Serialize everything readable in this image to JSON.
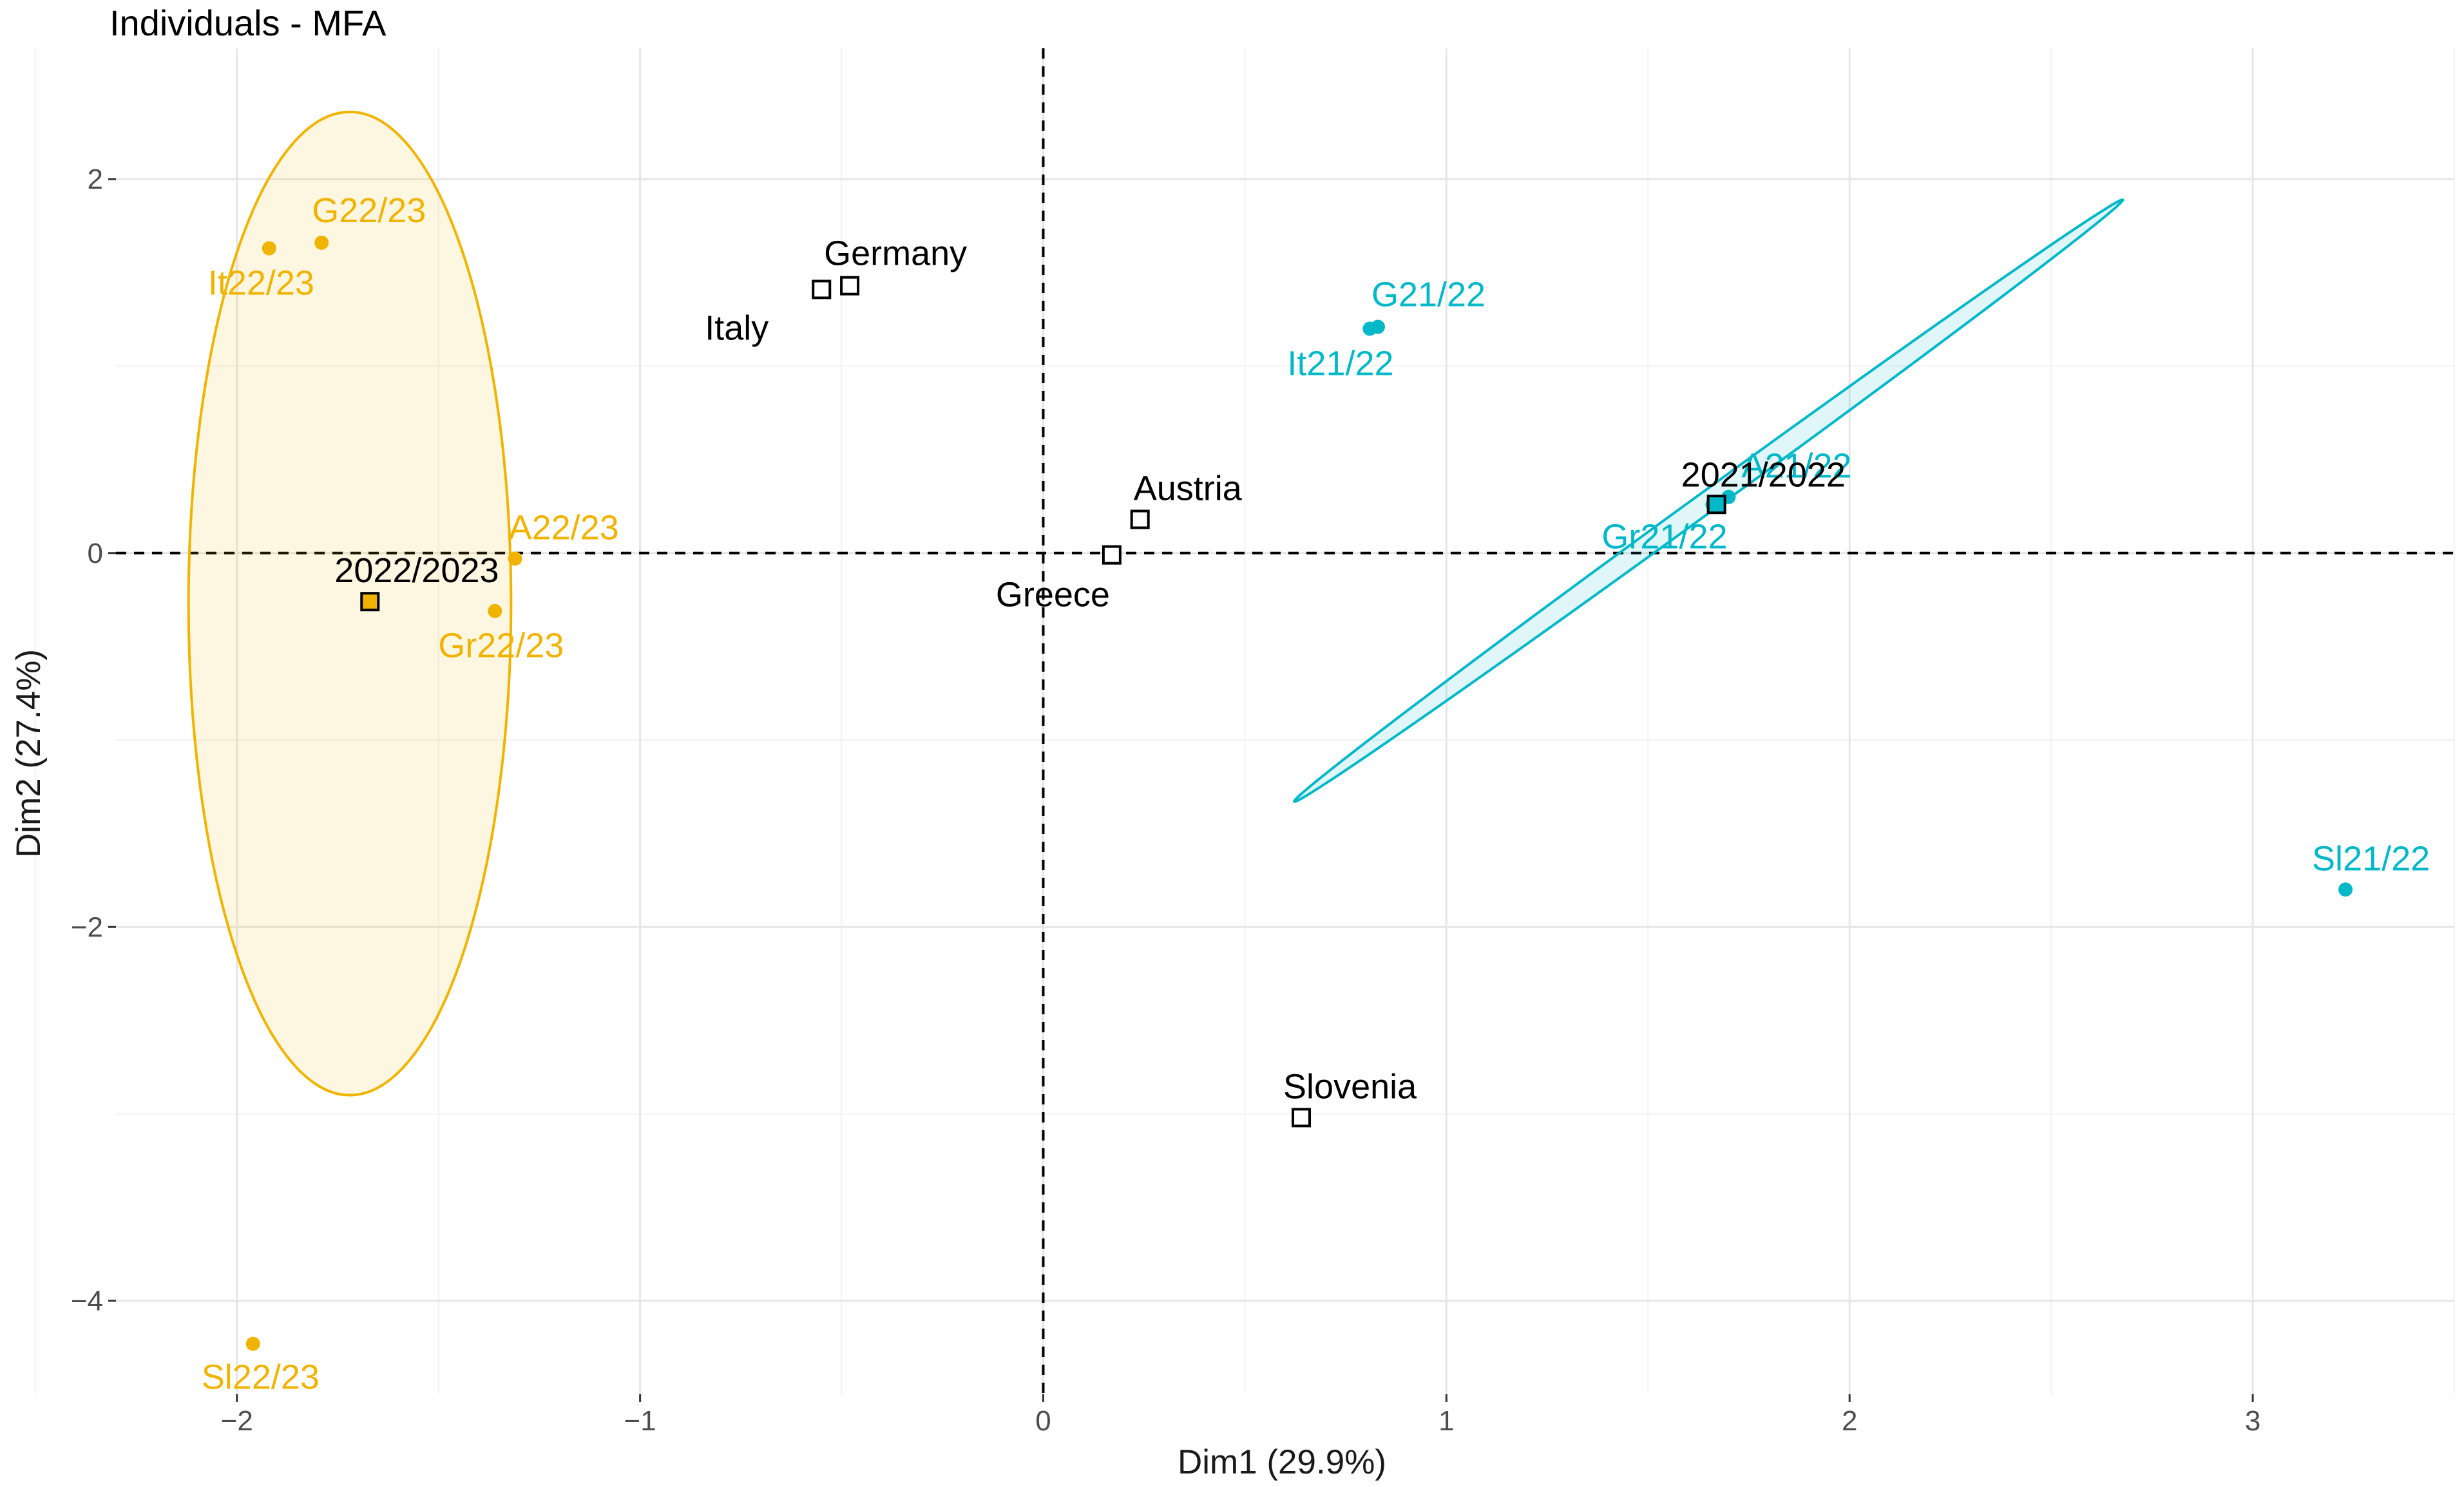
{
  "chart_data": {
    "type": "scatter",
    "title": "Individuals - MFA",
    "xlabel": "Dim1 (29.9%)",
    "ylabel": "Dim2 (27.4%)",
    "xlim": [
      -2.3,
      3.5
    ],
    "ylim": [
      -4.5,
      2.7
    ],
    "x_ticks": [
      -2,
      -1,
      0,
      1,
      2,
      3
    ],
    "y_ticks": [
      -4,
      -2,
      0,
      2
    ],
    "x_tick_labels": [
      "−2",
      "−1",
      "0",
      "1",
      "2",
      "3"
    ],
    "y_tick_labels": [
      "−4",
      "−2",
      "0",
      "2"
    ],
    "grid": true,
    "reference_lines": {
      "x": 0,
      "y": 0
    },
    "groups": [
      {
        "name": "2022/2023",
        "color": "#F0B400",
        "ellipse": {
          "center": [
            -1.72,
            -0.27
          ],
          "semi_axis_x": 0.4,
          "semi_axis_y": 2.63,
          "rotation_deg": 0
        },
        "centroid": {
          "label": "2022/2023",
          "x": -1.67,
          "y": -0.26
        },
        "points": [
          {
            "label": "G22/23",
            "x": -1.79,
            "y": 1.66
          },
          {
            "label": "It22/23",
            "x": -1.92,
            "y": 1.63
          },
          {
            "label": "A22/23",
            "x": -1.31,
            "y": -0.03
          },
          {
            "label": "Gr22/23",
            "x": -1.36,
            "y": -0.31
          },
          {
            "label": "Sl22/23",
            "x": -1.96,
            "y": -4.23
          }
        ]
      },
      {
        "name": "2021/2022",
        "color": "#00B8C8",
        "ellipse": {
          "center": [
            1.65,
            0.28
          ],
          "semi_axis_x": 1.27,
          "semi_axis_y": 0.055,
          "rotation_deg": 36
        },
        "centroid": {
          "label": "2021/2022",
          "x": 1.67,
          "y": 0.26
        },
        "points": [
          {
            "label": "G21/22",
            "x": 0.83,
            "y": 1.21
          },
          {
            "label": "It21/22",
            "x": 0.81,
            "y": 1.2
          },
          {
            "label": "A21/22",
            "x": 1.7,
            "y": 0.3
          },
          {
            "label": "Gr21/22",
            "x": 1.66,
            "y": 0.26
          },
          {
            "label": "Sl21/22",
            "x": 3.23,
            "y": -1.8
          }
        ]
      }
    ],
    "supplementary_points": [
      {
        "label": "Germany",
        "x": -0.48,
        "y": 1.43
      },
      {
        "label": "Italy",
        "x": -0.55,
        "y": 1.41
      },
      {
        "label": "Austria",
        "x": 0.24,
        "y": 0.18
      },
      {
        "label": "Greece",
        "x": 0.17,
        "y": -0.01
      },
      {
        "label": "Slovenia",
        "x": 0.64,
        "y": -3.02
      }
    ]
  }
}
